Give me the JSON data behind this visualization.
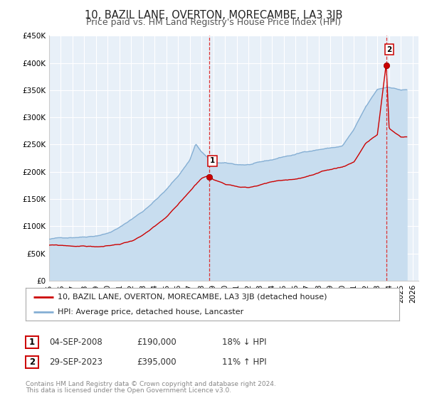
{
  "title": "10, BAZIL LANE, OVERTON, MORECAMBE, LA3 3JB",
  "subtitle": "Price paid vs. HM Land Registry's House Price Index (HPI)",
  "ylim": [
    0,
    450000
  ],
  "xlim_start": 1995.0,
  "xlim_end": 2026.5,
  "ytick_vals": [
    0,
    50000,
    100000,
    150000,
    200000,
    250000,
    300000,
    350000,
    400000,
    450000
  ],
  "ytick_labels": [
    "£0",
    "£50K",
    "£100K",
    "£150K",
    "£200K",
    "£250K",
    "£300K",
    "£350K",
    "£400K",
    "£450K"
  ],
  "xticks": [
    1995,
    1996,
    1997,
    1998,
    1999,
    2000,
    2001,
    2002,
    2003,
    2004,
    2005,
    2006,
    2007,
    2008,
    2009,
    2010,
    2011,
    2012,
    2013,
    2014,
    2015,
    2016,
    2017,
    2018,
    2019,
    2020,
    2021,
    2022,
    2023,
    2024,
    2025,
    2026
  ],
  "background_color": "#ffffff",
  "plot_bg_color": "#e8f0f8",
  "grid_color": "#ffffff",
  "hpi_line_color": "#85afd4",
  "hpi_fill_color": "#c8ddef",
  "price_line_color": "#cc0000",
  "marker1_x": 2008.67,
  "marker1_y": 190000,
  "marker2_x": 2023.75,
  "marker2_y": 395000,
  "vline1_x": 2008.67,
  "vline2_x": 2023.75,
  "legend_label1": "10, BAZIL LANE, OVERTON, MORECAMBE, LA3 3JB (detached house)",
  "legend_label2": "HPI: Average price, detached house, Lancaster",
  "table_row1_num": "1",
  "table_row1_date": "04-SEP-2008",
  "table_row1_price": "£190,000",
  "table_row1_hpi": "18% ↓ HPI",
  "table_row2_num": "2",
  "table_row2_date": "29-SEP-2023",
  "table_row2_price": "£395,000",
  "table_row2_hpi": "11% ↑ HPI",
  "footnote1": "Contains HM Land Registry data © Crown copyright and database right 2024.",
  "footnote2": "This data is licensed under the Open Government Licence v3.0.",
  "title_fontsize": 10.5,
  "subtitle_fontsize": 9,
  "tick_fontsize": 7.5,
  "legend_fontsize": 8,
  "table_fontsize": 8.5,
  "footnote_fontsize": 6.5
}
